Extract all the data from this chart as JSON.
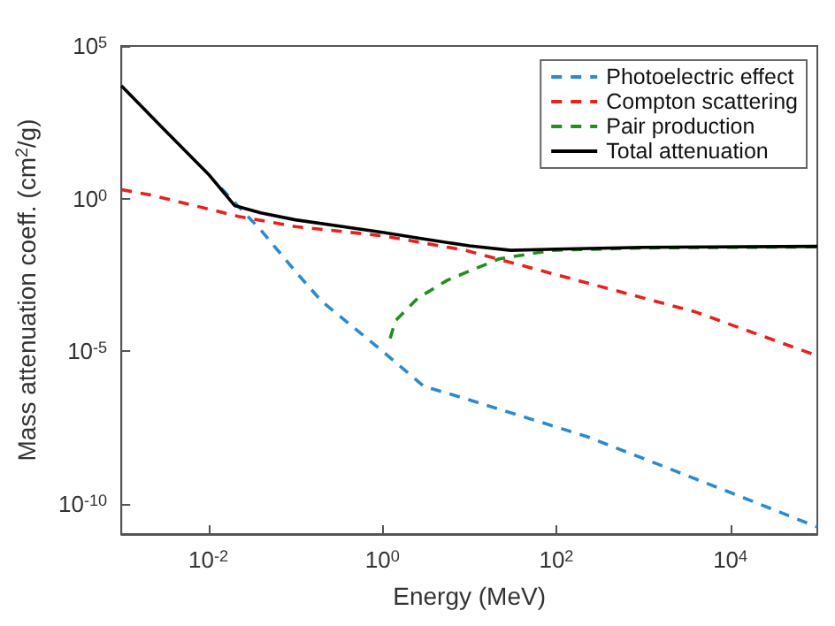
{
  "chart_data": {
    "type": "line",
    "xlabel": "Energy (MeV)",
    "ylabel": "Mass attenuation coeff. (cm$^{2}$/g)",
    "log": "xy",
    "grid": false,
    "legend": "top right",
    "xlim": [
      0.001,
      100000
    ],
    "ylim": [
      1e-11,
      100000
    ],
    "xticks": [
      {
        "value": 0.01,
        "label": "10$^{-2}$"
      },
      {
        "value": 1,
        "label": "10$^{0}$"
      },
      {
        "value": 100,
        "label": "10$^{2}$"
      },
      {
        "value": 10000,
        "label": "10$^{4}$"
      }
    ],
    "yticks": [
      {
        "value": 1e-10,
        "label": "10$^{-10}$"
      },
      {
        "value": 1e-05,
        "label": "10$^{-5}$"
      },
      {
        "value": 1,
        "label": "10$^{0}$"
      },
      {
        "value": 100000,
        "label": "10$^{5}$"
      }
    ],
    "series": [
      {
        "name": "Photoelectric effect",
        "color": "#2b8ad0",
        "line_style": "dashed",
        "x": [
          0.014,
          0.04,
          0.1,
          0.2,
          1,
          3,
          10,
          220,
          1000,
          10000,
          100000
        ],
        "values": [
          2.2,
          0.093,
          0.0041,
          0.00043,
          1e-05,
          7e-07,
          2.5e-07,
          1.6e-08,
          3e-09,
          2.3e-10,
          1.7e-11
        ]
      },
      {
        "name": "Compton scattering",
        "color": "#e8201f",
        "line_style": "dashed",
        "x": [
          0.001,
          0.0022,
          0.022,
          0.1,
          1,
          9,
          50,
          4000,
          100000
        ],
        "values": [
          1.95,
          1.3,
          0.26,
          0.12,
          0.06,
          0.02,
          0.0054,
          0.00019,
          7e-06
        ]
      },
      {
        "name": "Pair production",
        "color": "#1f8f1f",
        "line_style": "dashed",
        "x": [
          1.23,
          1.41,
          2.57,
          5.6,
          22,
          89,
          1000,
          100000
        ],
        "values": [
          2.6e-05,
          9.8e-05,
          0.00055,
          0.0021,
          0.0105,
          0.02,
          0.024,
          0.026
        ]
      },
      {
        "name": "Total attenuation",
        "color": "#000000",
        "line_style": "solid",
        "x": [
          0.001,
          0.003,
          0.01,
          0.02,
          0.04,
          0.1,
          1,
          3,
          10,
          30,
          100,
          1000,
          100000
        ],
        "values": [
          5000,
          200,
          6.3,
          0.59,
          0.34,
          0.2,
          0.078,
          0.047,
          0.028,
          0.02,
          0.022,
          0.025,
          0.027
        ]
      }
    ]
  }
}
